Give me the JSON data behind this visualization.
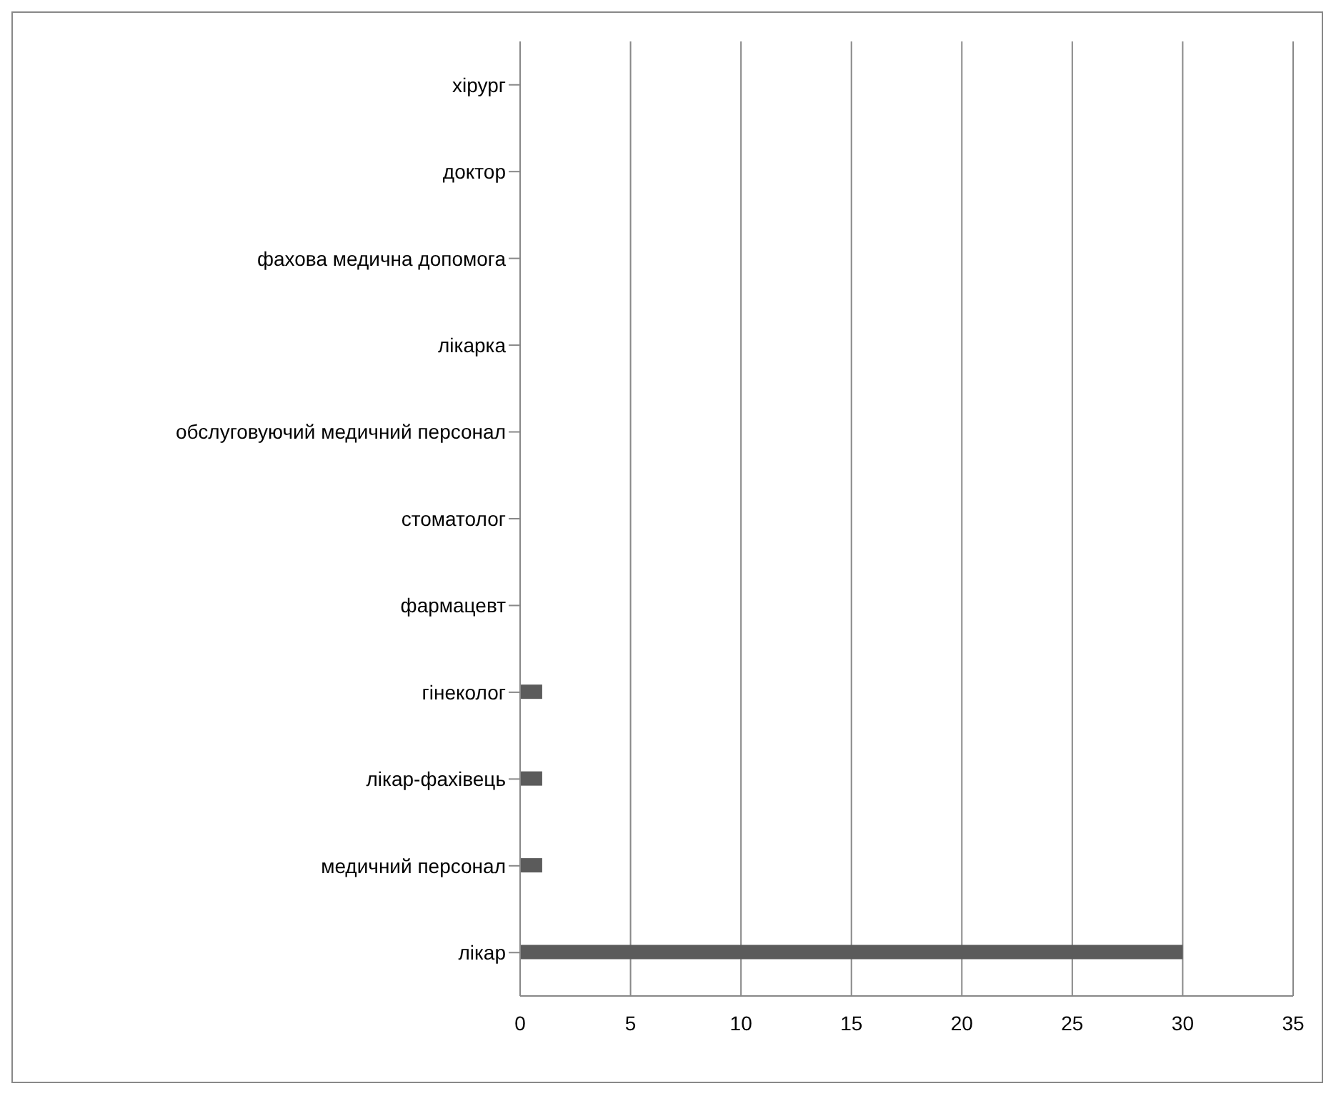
{
  "chart_data": {
    "type": "bar",
    "orientation": "horizontal",
    "categories": [
      "хірург",
      "доктор",
      "фахова медична допомога",
      "лікарка",
      "обслуговуючий медичний персонал",
      "стоматолог",
      "фармацевт",
      "гінеколог",
      "лікар-фахівець",
      "медичний персонал",
      "лікар"
    ],
    "values": [
      0,
      0,
      0,
      0,
      0,
      0,
      0,
      1,
      1,
      1,
      30
    ],
    "color": "#5b5b5b",
    "xlim": [
      0,
      35
    ],
    "xticks": [
      0,
      5,
      10,
      15,
      20,
      25,
      30,
      35
    ],
    "grid": "x"
  }
}
